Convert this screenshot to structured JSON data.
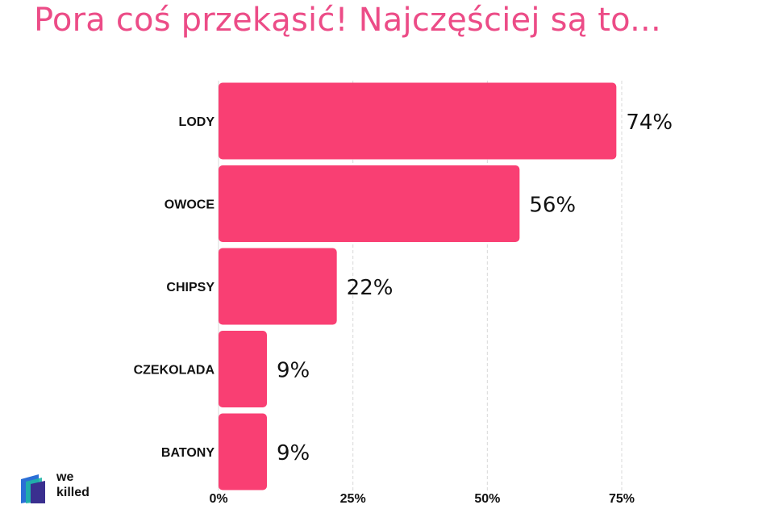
{
  "title": "Pora coś przekąsić! Najczęściej są to...",
  "colors": {
    "accent": "#ec4c87",
    "bar": "#f93f73",
    "grid": "#d9d9d9",
    "text": "#111111"
  },
  "logo": {
    "line1": "we",
    "line2": "killed"
  },
  "chart_data": {
    "type": "bar",
    "orientation": "horizontal",
    "title": "Pora coś przekąsić! Najczęściej są to...",
    "categories": [
      "LODY",
      "OWOCE",
      "CHIPSY",
      "CZEKOLADA",
      "BATONY"
    ],
    "values": [
      74,
      56,
      22,
      9,
      9
    ],
    "value_labels": [
      "74%",
      "56%",
      "22%",
      "9%",
      "9%"
    ],
    "xlim": [
      0,
      75
    ],
    "xticks": [
      0,
      25,
      50,
      75
    ],
    "xtick_labels": [
      "0%",
      "25%",
      "50%",
      "75%"
    ],
    "grid": true,
    "legend": "none"
  }
}
